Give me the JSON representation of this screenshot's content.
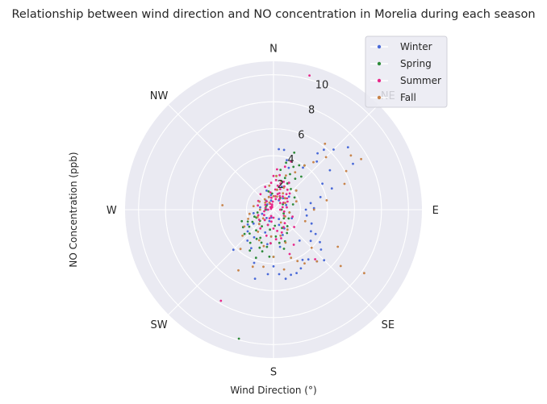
{
  "chart_data": {
    "type": "scatter",
    "projection": "polar",
    "title": "Relationship between wind direction and NO concentration in Morelia during each season",
    "xlabel": "Wind Direction (°)",
    "ylabel": "NO Concentration (ppb)",
    "angular_ticks": [
      "N",
      "NE",
      "E",
      "SE",
      "S",
      "SW",
      "W",
      "NW"
    ],
    "radial_ticks": [
      2,
      4,
      6,
      8,
      10
    ],
    "rlim": [
      0,
      11
    ],
    "theta_zero": "north",
    "theta_direction": "clockwise",
    "grid": true,
    "legend_position": "top-right",
    "series": [
      {
        "name": "Winter",
        "color": "#4a6ad8",
        "points": [
          [
            20,
            3.3
          ],
          [
            35,
            3.8
          ],
          [
            38,
            5.3
          ],
          [
            40,
            5.8
          ],
          [
            42,
            4.8
          ],
          [
            45,
            6.3
          ],
          [
            50,
            7.2
          ],
          [
            55,
            5.1
          ],
          [
            60,
            6.8
          ],
          [
            62,
            4.1
          ],
          [
            70,
            4.6
          ],
          [
            75,
            3.6
          ],
          [
            80,
            2.8
          ],
          [
            90,
            2.4
          ],
          [
            100,
            2.5
          ],
          [
            110,
            3.0
          ],
          [
            120,
            3.6
          ],
          [
            125,
            4.2
          ],
          [
            130,
            4.6
          ],
          [
            135,
            5.3
          ],
          [
            140,
            5.0
          ],
          [
            145,
            4.5
          ],
          [
            150,
            4.3
          ],
          [
            155,
            4.8
          ],
          [
            160,
            5.0
          ],
          [
            165,
            5.0
          ],
          [
            170,
            5.2
          ],
          [
            175,
            4.8
          ],
          [
            180,
            4.2
          ],
          [
            185,
            4.8
          ],
          [
            195,
            5.3
          ],
          [
            200,
            4.2
          ],
          [
            210,
            3.3
          ],
          [
            220,
            3.0
          ],
          [
            225,
            4.2
          ],
          [
            230,
            2.5
          ],
          [
            240,
            2.2
          ],
          [
            260,
            1.5
          ],
          [
            300,
            1.2
          ],
          [
            340,
            1.5
          ],
          [
            20,
            1.8
          ],
          [
            50,
            1.5
          ],
          [
            100,
            1.2
          ],
          [
            150,
            1.6
          ],
          [
            200,
            1.8
          ],
          [
            250,
            0.9
          ],
          [
            5,
            4.5
          ],
          [
            10,
            4.5
          ],
          [
            15,
            3.8
          ],
          [
            28,
            2.2
          ],
          [
            70,
            1.0
          ],
          [
            130,
            3.6
          ],
          [
            140,
            3.0
          ],
          [
            160,
            2.0
          ],
          [
            170,
            2.8
          ],
          [
            185,
            2.0
          ],
          [
            190,
            2.6
          ],
          [
            215,
            2.5
          ],
          [
            235,
            1.8
          ],
          [
            280,
            1.0
          ],
          [
            320,
            0.9
          ],
          [
            345,
            0.7
          ],
          [
            15,
            1.2
          ],
          [
            40,
            1.1
          ],
          [
            115,
            1.5
          ],
          [
            160,
            1.2
          ],
          [
            195,
            0.6
          ],
          [
            270,
            0.5
          ],
          [
            310,
            0.6
          ],
          [
            350,
            1.1
          ],
          [
            30,
            0.8
          ],
          [
            200,
            0.9
          ],
          [
            150,
            0.8
          ],
          [
            88,
            3.0
          ],
          [
            120,
            3.2
          ],
          [
            220,
            0.8
          ]
        ]
      },
      {
        "name": "Spring",
        "color": "#2e8b3a",
        "points": [
          [
            15,
            2.2
          ],
          [
            20,
            2.5
          ],
          [
            25,
            2.9
          ],
          [
            28,
            2.2
          ],
          [
            30,
            2.3
          ],
          [
            35,
            2.8
          ],
          [
            40,
            3.2
          ],
          [
            30,
            3.8
          ],
          [
            25,
            3.5
          ],
          [
            40,
            2.0
          ],
          [
            50,
            2.2
          ],
          [
            60,
            1.8
          ],
          [
            75,
            1.5
          ],
          [
            100,
            1.2
          ],
          [
            120,
            1.3
          ],
          [
            150,
            2.0
          ],
          [
            160,
            2.5
          ],
          [
            165,
            3.0
          ],
          [
            170,
            2.5
          ],
          [
            175,
            2.0
          ],
          [
            185,
            2.5
          ],
          [
            190,
            2.8
          ],
          [
            195,
            3.2
          ],
          [
            200,
            2.6
          ],
          [
            205,
            2.3
          ],
          [
            210,
            2.5
          ],
          [
            215,
            3.0
          ],
          [
            220,
            2.0
          ],
          [
            225,
            2.5
          ],
          [
            230,
            2.8
          ],
          [
            235,
            2.2
          ],
          [
            240,
            1.8
          ],
          [
            245,
            2.1
          ],
          [
            250,
            1.5
          ],
          [
            260,
            1.2
          ],
          [
            270,
            0.6
          ],
          [
            285,
            0.6
          ],
          [
            300,
            0.6
          ],
          [
            320,
            0.8
          ],
          [
            340,
            1.0
          ],
          [
            345,
            1.4
          ],
          [
            5,
            2.5
          ],
          [
            10,
            3.0
          ],
          [
            15,
            3.6
          ],
          [
            20,
            4.5
          ],
          [
            35,
            4.0
          ],
          [
            195,
            9.9
          ],
          [
            180,
            3.5
          ],
          [
            200,
            3.8
          ],
          [
            215,
            1.5
          ],
          [
            230,
            1.3
          ],
          [
            245,
            1.4
          ],
          [
            200,
            1.2
          ],
          [
            220,
            1.0
          ],
          [
            190,
            1.5
          ],
          [
            175,
            1.2
          ],
          [
            155,
            1.5
          ],
          [
            140,
            1.6
          ],
          [
            130,
            1.0
          ],
          [
            110,
            0.8
          ],
          [
            90,
            0.6
          ],
          [
            60,
            0.8
          ],
          [
            45,
            1.2
          ],
          [
            30,
            1.0
          ],
          [
            10,
            1.5
          ],
          [
            355,
            1.2
          ],
          [
            250,
            2.5
          ],
          [
            240,
            2.6
          ],
          [
            210,
            3.5
          ],
          [
            200,
            3.0
          ],
          [
            185,
            3.5
          ]
        ]
      },
      {
        "name": "Summer",
        "color": "#e8288a",
        "points": [
          [
            5,
            1.5
          ],
          [
            10,
            1.8
          ],
          [
            15,
            1.2
          ],
          [
            18,
            1.6
          ],
          [
            20,
            2.2
          ],
          [
            25,
            1.9
          ],
          [
            30,
            2.3
          ],
          [
            35,
            1.8
          ],
          [
            40,
            1.5
          ],
          [
            45,
            1.7
          ],
          [
            50,
            1.3
          ],
          [
            60,
            1.2
          ],
          [
            80,
            1.0
          ],
          [
            100,
            0.8
          ],
          [
            120,
            0.9
          ],
          [
            140,
            1.3
          ],
          [
            150,
            1.5
          ],
          [
            160,
            1.8
          ],
          [
            170,
            1.6
          ],
          [
            180,
            1.4
          ],
          [
            200,
            1.2
          ],
          [
            220,
            1.0
          ],
          [
            240,
            0.8
          ],
          [
            260,
            0.7
          ],
          [
            280,
            0.6
          ],
          [
            300,
            0.7
          ],
          [
            320,
            0.8
          ],
          [
            340,
            1.0
          ],
          [
            350,
            1.3
          ],
          [
            355,
            2.0
          ],
          [
            0,
            2.5
          ],
          [
            5,
            2.2
          ],
          [
            10,
            2.6
          ],
          [
            15,
            2.0
          ],
          [
            20,
            1.3
          ],
          [
            8,
            1.0
          ],
          [
            12,
            0.8
          ],
          [
            30,
            0.9
          ],
          [
            45,
            0.7
          ],
          [
            200,
            0.5
          ],
          [
            270,
            0.4
          ],
          [
            330,
            0.5
          ],
          [
            15,
            10.3
          ],
          [
            210,
            7.8
          ],
          [
            140,
            4.8
          ],
          [
            150,
            3.0
          ],
          [
            160,
            3.5
          ],
          [
            165,
            2.2
          ],
          [
            130,
            2.0
          ],
          [
            110,
            1.5
          ],
          [
            20,
            3.8
          ],
          [
            15,
            3.3
          ],
          [
            5,
            3.0
          ],
          [
            340,
            1.8
          ],
          [
            320,
            1.5
          ],
          [
            300,
            1.3
          ],
          [
            285,
            1.2
          ],
          [
            250,
            1.2
          ],
          [
            235,
            1.3
          ],
          [
            225,
            1.5
          ],
          [
            215,
            1.7
          ],
          [
            195,
            2.0
          ],
          [
            185,
            2.5
          ],
          [
            175,
            2.2
          ],
          [
            25,
            1.1
          ],
          [
            35,
            1.2
          ],
          [
            55,
            0.9
          ],
          [
            75,
            0.7
          ],
          [
            90,
            0.5
          ],
          [
            180,
            0.6
          ],
          [
            190,
            0.9
          ],
          [
            205,
            0.7
          ],
          [
            355,
            0.6
          ],
          [
            350,
            0.9
          ],
          [
            345,
            0.4
          ],
          [
            340,
            0.3
          ],
          [
            330,
            0.2
          ],
          [
            310,
            0.3
          ],
          [
            290,
            0.2
          ]
        ]
      },
      {
        "name": "Fall",
        "color": "#c8844a",
        "points": [
          [
            15,
            2.2
          ],
          [
            20,
            2.7
          ],
          [
            30,
            3.2
          ],
          [
            35,
            4.0
          ],
          [
            38,
            6.2
          ],
          [
            40,
            4.6
          ],
          [
            45,
            5.5
          ],
          [
            55,
            7.0
          ],
          [
            60,
            7.5
          ],
          [
            62,
            6.1
          ],
          [
            70,
            5.6
          ],
          [
            80,
            4.0
          ],
          [
            90,
            3.0
          ],
          [
            110,
            2.5
          ],
          [
            120,
            5.5
          ],
          [
            125,
            8.2
          ],
          [
            130,
            6.5
          ],
          [
            140,
            5.0
          ],
          [
            150,
            4.6
          ],
          [
            155,
            4.2
          ],
          [
            160,
            3.8
          ],
          [
            170,
            4.5
          ],
          [
            180,
            3.5
          ],
          [
            190,
            4.3
          ],
          [
            200,
            4.5
          ],
          [
            210,
            5.2
          ],
          [
            220,
            3.8
          ],
          [
            230,
            3.0
          ],
          [
            240,
            2.5
          ],
          [
            250,
            2.0
          ],
          [
            260,
            1.8
          ],
          [
            275,
            3.8
          ],
          [
            280,
            1.5
          ],
          [
            300,
            1.2
          ],
          [
            320,
            1.0
          ],
          [
            340,
            1.0
          ],
          [
            350,
            1.8
          ],
          [
            5,
            2.5
          ],
          [
            10,
            1.5
          ],
          [
            25,
            1.8
          ],
          [
            45,
            1.2
          ],
          [
            100,
            1.2
          ],
          [
            145,
            1.8
          ],
          [
            165,
            2.0
          ],
          [
            185,
            2.0
          ],
          [
            205,
            2.5
          ],
          [
            215,
            2.0
          ],
          [
            225,
            1.5
          ],
          [
            245,
            1.3
          ],
          [
            270,
            1.0
          ],
          [
            310,
            0.8
          ],
          [
            330,
            0.6
          ],
          [
            0,
            1.0
          ],
          [
            15,
            1.0
          ],
          [
            60,
            1.0
          ],
          [
            135,
            4.0
          ],
          [
            160,
            2.6
          ],
          [
            195,
            2.8
          ],
          [
            230,
            1.0
          ],
          [
            150,
            1.1
          ],
          [
            120,
            1.0
          ],
          [
            30,
            1.4
          ],
          [
            50,
            2.2
          ],
          [
            70,
            1.8
          ]
        ]
      }
    ]
  }
}
